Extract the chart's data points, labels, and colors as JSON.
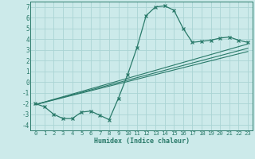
{
  "title": "",
  "xlabel": "Humidex (Indice chaleur)",
  "bg_color": "#cceaea",
  "grid_color": "#aad4d4",
  "line_color": "#2a7a6a",
  "xlim": [
    -0.5,
    23.5
  ],
  "ylim": [
    -4.5,
    7.5
  ],
  "xtick_labels": [
    "0",
    "1",
    "2",
    "3",
    "4",
    "5",
    "6",
    "7",
    "8",
    "9",
    "10",
    "11",
    "12",
    "13",
    "14",
    "15",
    "16",
    "17",
    "18",
    "19",
    "20",
    "21",
    "22",
    "23"
  ],
  "xticks": [
    0,
    1,
    2,
    3,
    4,
    5,
    6,
    7,
    8,
    9,
    10,
    11,
    12,
    13,
    14,
    15,
    16,
    17,
    18,
    19,
    20,
    21,
    22,
    23
  ],
  "yticks": [
    -4,
    -3,
    -2,
    -1,
    0,
    1,
    2,
    3,
    4,
    5,
    6,
    7
  ],
  "ytick_labels": [
    "-4",
    "-3",
    "-2",
    "-1",
    "0",
    "1",
    "2",
    "3",
    "4",
    "5",
    "6",
    "7"
  ],
  "curve1_x": [
    0,
    1,
    2,
    3,
    4,
    5,
    6,
    7,
    8,
    9,
    10,
    11,
    12,
    13,
    14,
    15,
    16,
    17,
    18,
    19,
    20,
    21,
    22,
    23
  ],
  "curve1_y": [
    -2.0,
    -2.3,
    -3.0,
    -3.4,
    -3.4,
    -2.8,
    -2.7,
    -3.1,
    -3.5,
    -1.5,
    0.7,
    3.2,
    6.2,
    7.0,
    7.1,
    6.7,
    5.0,
    3.7,
    3.8,
    3.9,
    4.1,
    4.2,
    3.9,
    3.7
  ],
  "line1_x": [
    0,
    23
  ],
  "line1_y": [
    -2.1,
    3.55
  ],
  "line2_x": [
    0,
    23
  ],
  "line2_y": [
    -2.1,
    3.15
  ],
  "line3_x": [
    0,
    23
  ],
  "line3_y": [
    -2.1,
    2.85
  ]
}
